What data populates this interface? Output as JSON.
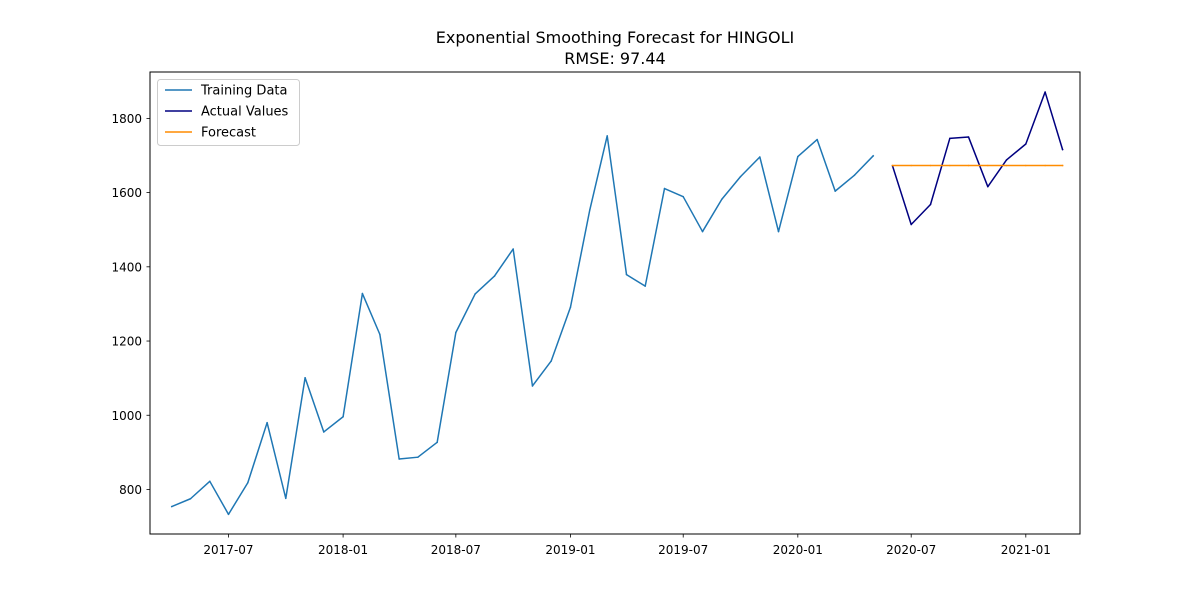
{
  "chart_data": {
    "type": "line",
    "title": "Exponential Smoothing Forecast for HINGOLI",
    "subtitle": "RMSE: 97.44",
    "xlabel": "",
    "ylabel": "",
    "x_axis": {
      "type": "date",
      "range": [
        "2017-02-25",
        "2021-03-29"
      ],
      "ticks": [
        {
          "date": "2017-07-01",
          "label": "2017-07"
        },
        {
          "date": "2018-01-01",
          "label": "2018-01"
        },
        {
          "date": "2018-07-01",
          "label": "2018-07"
        },
        {
          "date": "2019-01-01",
          "label": "2019-01"
        },
        {
          "date": "2019-07-01",
          "label": "2019-07"
        },
        {
          "date": "2020-01-01",
          "label": "2020-01"
        },
        {
          "date": "2020-07-01",
          "label": "2020-07"
        },
        {
          "date": "2021-01-01",
          "label": "2021-01"
        }
      ]
    },
    "y_axis": {
      "range": [
        680,
        1925
      ],
      "ticks": [
        800,
        1000,
        1200,
        1400,
        1600,
        1800
      ]
    },
    "grid": false,
    "legend": {
      "position": "top-left",
      "entries": [
        "Training Data",
        "Actual Values",
        "Forecast"
      ]
    },
    "series": [
      {
        "name": "Training Data",
        "color": "#1f77b4",
        "points": [
          {
            "x": "2017-04-01",
            "y": 754
          },
          {
            "x": "2017-05-01",
            "y": 775
          },
          {
            "x": "2017-06-01",
            "y": 822
          },
          {
            "x": "2017-07-01",
            "y": 733
          },
          {
            "x": "2017-08-01",
            "y": 818
          },
          {
            "x": "2017-09-01",
            "y": 980
          },
          {
            "x": "2017-10-01",
            "y": 776
          },
          {
            "x": "2017-11-01",
            "y": 1101
          },
          {
            "x": "2017-12-01",
            "y": 955
          },
          {
            "x": "2018-01-01",
            "y": 996
          },
          {
            "x": "2018-02-01",
            "y": 1328
          },
          {
            "x": "2018-03-01",
            "y": 1218
          },
          {
            "x": "2018-04-01",
            "y": 882
          },
          {
            "x": "2018-05-01",
            "y": 887
          },
          {
            "x": "2018-06-01",
            "y": 927
          },
          {
            "x": "2018-07-01",
            "y": 1223
          },
          {
            "x": "2018-08-01",
            "y": 1327
          },
          {
            "x": "2018-09-01",
            "y": 1375
          },
          {
            "x": "2018-10-01",
            "y": 1448
          },
          {
            "x": "2018-11-01",
            "y": 1079
          },
          {
            "x": "2018-12-01",
            "y": 1146
          },
          {
            "x": "2019-01-01",
            "y": 1291
          },
          {
            "x": "2019-02-01",
            "y": 1553
          },
          {
            "x": "2019-03-01",
            "y": 1753
          },
          {
            "x": "2019-04-01",
            "y": 1379
          },
          {
            "x": "2019-05-01",
            "y": 1348
          },
          {
            "x": "2019-06-01",
            "y": 1611
          },
          {
            "x": "2019-07-01",
            "y": 1589
          },
          {
            "x": "2019-08-01",
            "y": 1495
          },
          {
            "x": "2019-09-01",
            "y": 1582
          },
          {
            "x": "2019-10-01",
            "y": 1643
          },
          {
            "x": "2019-11-01",
            "y": 1696
          },
          {
            "x": "2019-12-01",
            "y": 1495
          },
          {
            "x": "2020-01-01",
            "y": 1697
          },
          {
            "x": "2020-02-01",
            "y": 1743
          },
          {
            "x": "2020-03-01",
            "y": 1604
          },
          {
            "x": "2020-04-01",
            "y": 1647
          },
          {
            "x": "2020-05-01",
            "y": 1699
          }
        ]
      },
      {
        "name": "Actual Values",
        "color": "#000080",
        "points": [
          {
            "x": "2020-06-01",
            "y": 1672
          },
          {
            "x": "2020-07-01",
            "y": 1514
          },
          {
            "x": "2020-08-01",
            "y": 1568
          },
          {
            "x": "2020-09-01",
            "y": 1746
          },
          {
            "x": "2020-10-01",
            "y": 1750
          },
          {
            "x": "2020-11-01",
            "y": 1616
          },
          {
            "x": "2020-12-01",
            "y": 1688
          },
          {
            "x": "2021-01-01",
            "y": 1731
          },
          {
            "x": "2021-02-01",
            "y": 1871
          },
          {
            "x": "2021-03-01",
            "y": 1716
          }
        ]
      },
      {
        "name": "Forecast",
        "color": "#ff8c00",
        "points": [
          {
            "x": "2020-06-01",
            "y": 1673
          },
          {
            "x": "2020-07-01",
            "y": 1673
          },
          {
            "x": "2020-08-01",
            "y": 1673
          },
          {
            "x": "2020-09-01",
            "y": 1673
          },
          {
            "x": "2020-10-01",
            "y": 1673
          },
          {
            "x": "2020-11-01",
            "y": 1673
          },
          {
            "x": "2020-12-01",
            "y": 1673
          },
          {
            "x": "2021-01-01",
            "y": 1673
          },
          {
            "x": "2021-02-01",
            "y": 1673
          },
          {
            "x": "2021-03-01",
            "y": 1673
          }
        ]
      }
    ]
  }
}
